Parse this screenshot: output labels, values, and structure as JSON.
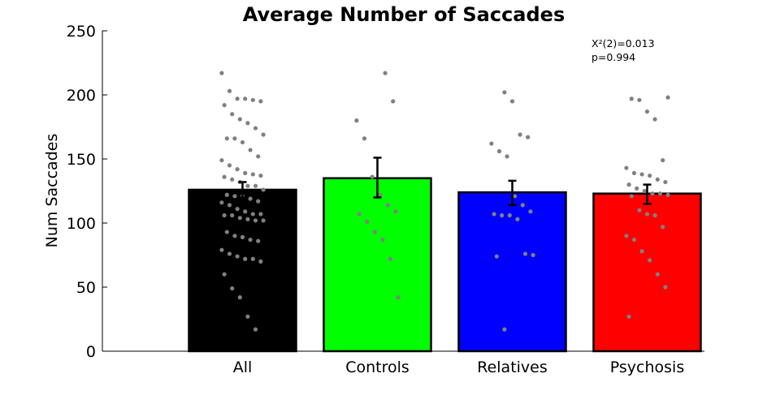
{
  "chart_data": {
    "type": "bar",
    "title": "Average Number of Saccades",
    "xlabel": "",
    "ylabel": "Num Saccades",
    "ylim": [
      0,
      250
    ],
    "yticks": [
      0,
      50,
      100,
      150,
      200,
      250
    ],
    "categories": [
      "All",
      "Controls",
      "Relatives",
      "Psychosis"
    ],
    "values": [
      126,
      135,
      124,
      123
    ],
    "error": [
      [
        120,
        132
      ],
      [
        120,
        151
      ],
      [
        114,
        133
      ],
      [
        115,
        130
      ]
    ],
    "bar_colors": [
      "#000000",
      "#00ff00",
      "#0000ff",
      "#ff0000"
    ],
    "points_color": "#808080",
    "grid": false,
    "legend": "none",
    "annotation": [
      "X²(2)=0.013",
      "p=0.994"
    ],
    "points": [
      [
        217,
        203,
        197,
        197,
        196,
        195,
        192,
        185,
        181,
        178,
        174,
        169,
        166,
        166,
        163,
        157,
        152,
        149,
        145,
        142,
        139,
        138,
        137,
        136,
        134,
        132,
        129,
        129,
        126,
        122,
        121,
        121,
        119,
        117,
        116,
        114,
        111,
        109,
        107,
        107,
        106,
        106,
        104,
        103,
        102,
        102,
        93,
        90,
        89,
        87,
        86,
        79,
        76,
        74,
        72,
        72,
        70,
        60,
        49,
        42,
        27,
        17
      ],
      [
        217,
        195,
        180,
        166,
        136,
        122,
        114,
        109,
        107,
        101,
        93,
        87,
        72,
        42
      ],
      [
        202,
        195,
        169,
        167,
        162,
        156,
        152,
        121,
        114,
        109,
        107,
        106,
        106,
        103,
        76,
        75,
        74,
        17
      ],
      [
        198,
        197,
        196,
        187,
        181,
        149,
        143,
        139,
        138,
        137,
        134,
        132,
        130,
        127,
        125,
        123,
        123,
        122,
        121,
        110,
        107,
        106,
        97,
        90,
        87,
        78,
        71,
        60,
        50,
        27
      ]
    ]
  }
}
